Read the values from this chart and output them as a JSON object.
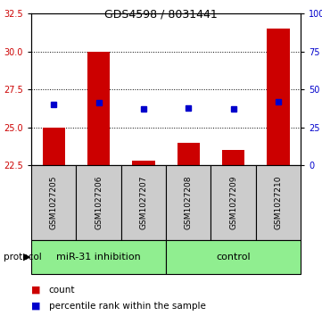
{
  "title": "GDS4598 / 8031441",
  "samples": [
    "GSM1027205",
    "GSM1027206",
    "GSM1027207",
    "GSM1027208",
    "GSM1027209",
    "GSM1027210"
  ],
  "bar_values": [
    25.0,
    30.0,
    22.8,
    24.0,
    23.5,
    31.5
  ],
  "baseline": 22.5,
  "blue_values": [
    26.5,
    26.6,
    26.2,
    26.3,
    26.2,
    26.7
  ],
  "ylim_left": [
    22.5,
    32.5
  ],
  "ylim_right": [
    0,
    100
  ],
  "left_ticks": [
    22.5,
    25.0,
    27.5,
    30.0,
    32.5
  ],
  "right_ticks": [
    0,
    25,
    50,
    75,
    100
  ],
  "right_tick_labels": [
    "0",
    "25",
    "50",
    "75",
    "100%"
  ],
  "bar_color": "#cc0000",
  "blue_color": "#0000cc",
  "protocol_groups": [
    {
      "label": "miR-31 inhibition",
      "indices": [
        0,
        1,
        2
      ]
    },
    {
      "label": "control",
      "indices": [
        3,
        4,
        5
      ]
    }
  ],
  "protocol_color": "#90EE90",
  "sample_bg_color": "#cccccc",
  "legend_count_label": "count",
  "legend_percentile_label": "percentile rank within the sample",
  "fig_width": 3.61,
  "fig_height": 3.63,
  "fig_dpi": 100
}
